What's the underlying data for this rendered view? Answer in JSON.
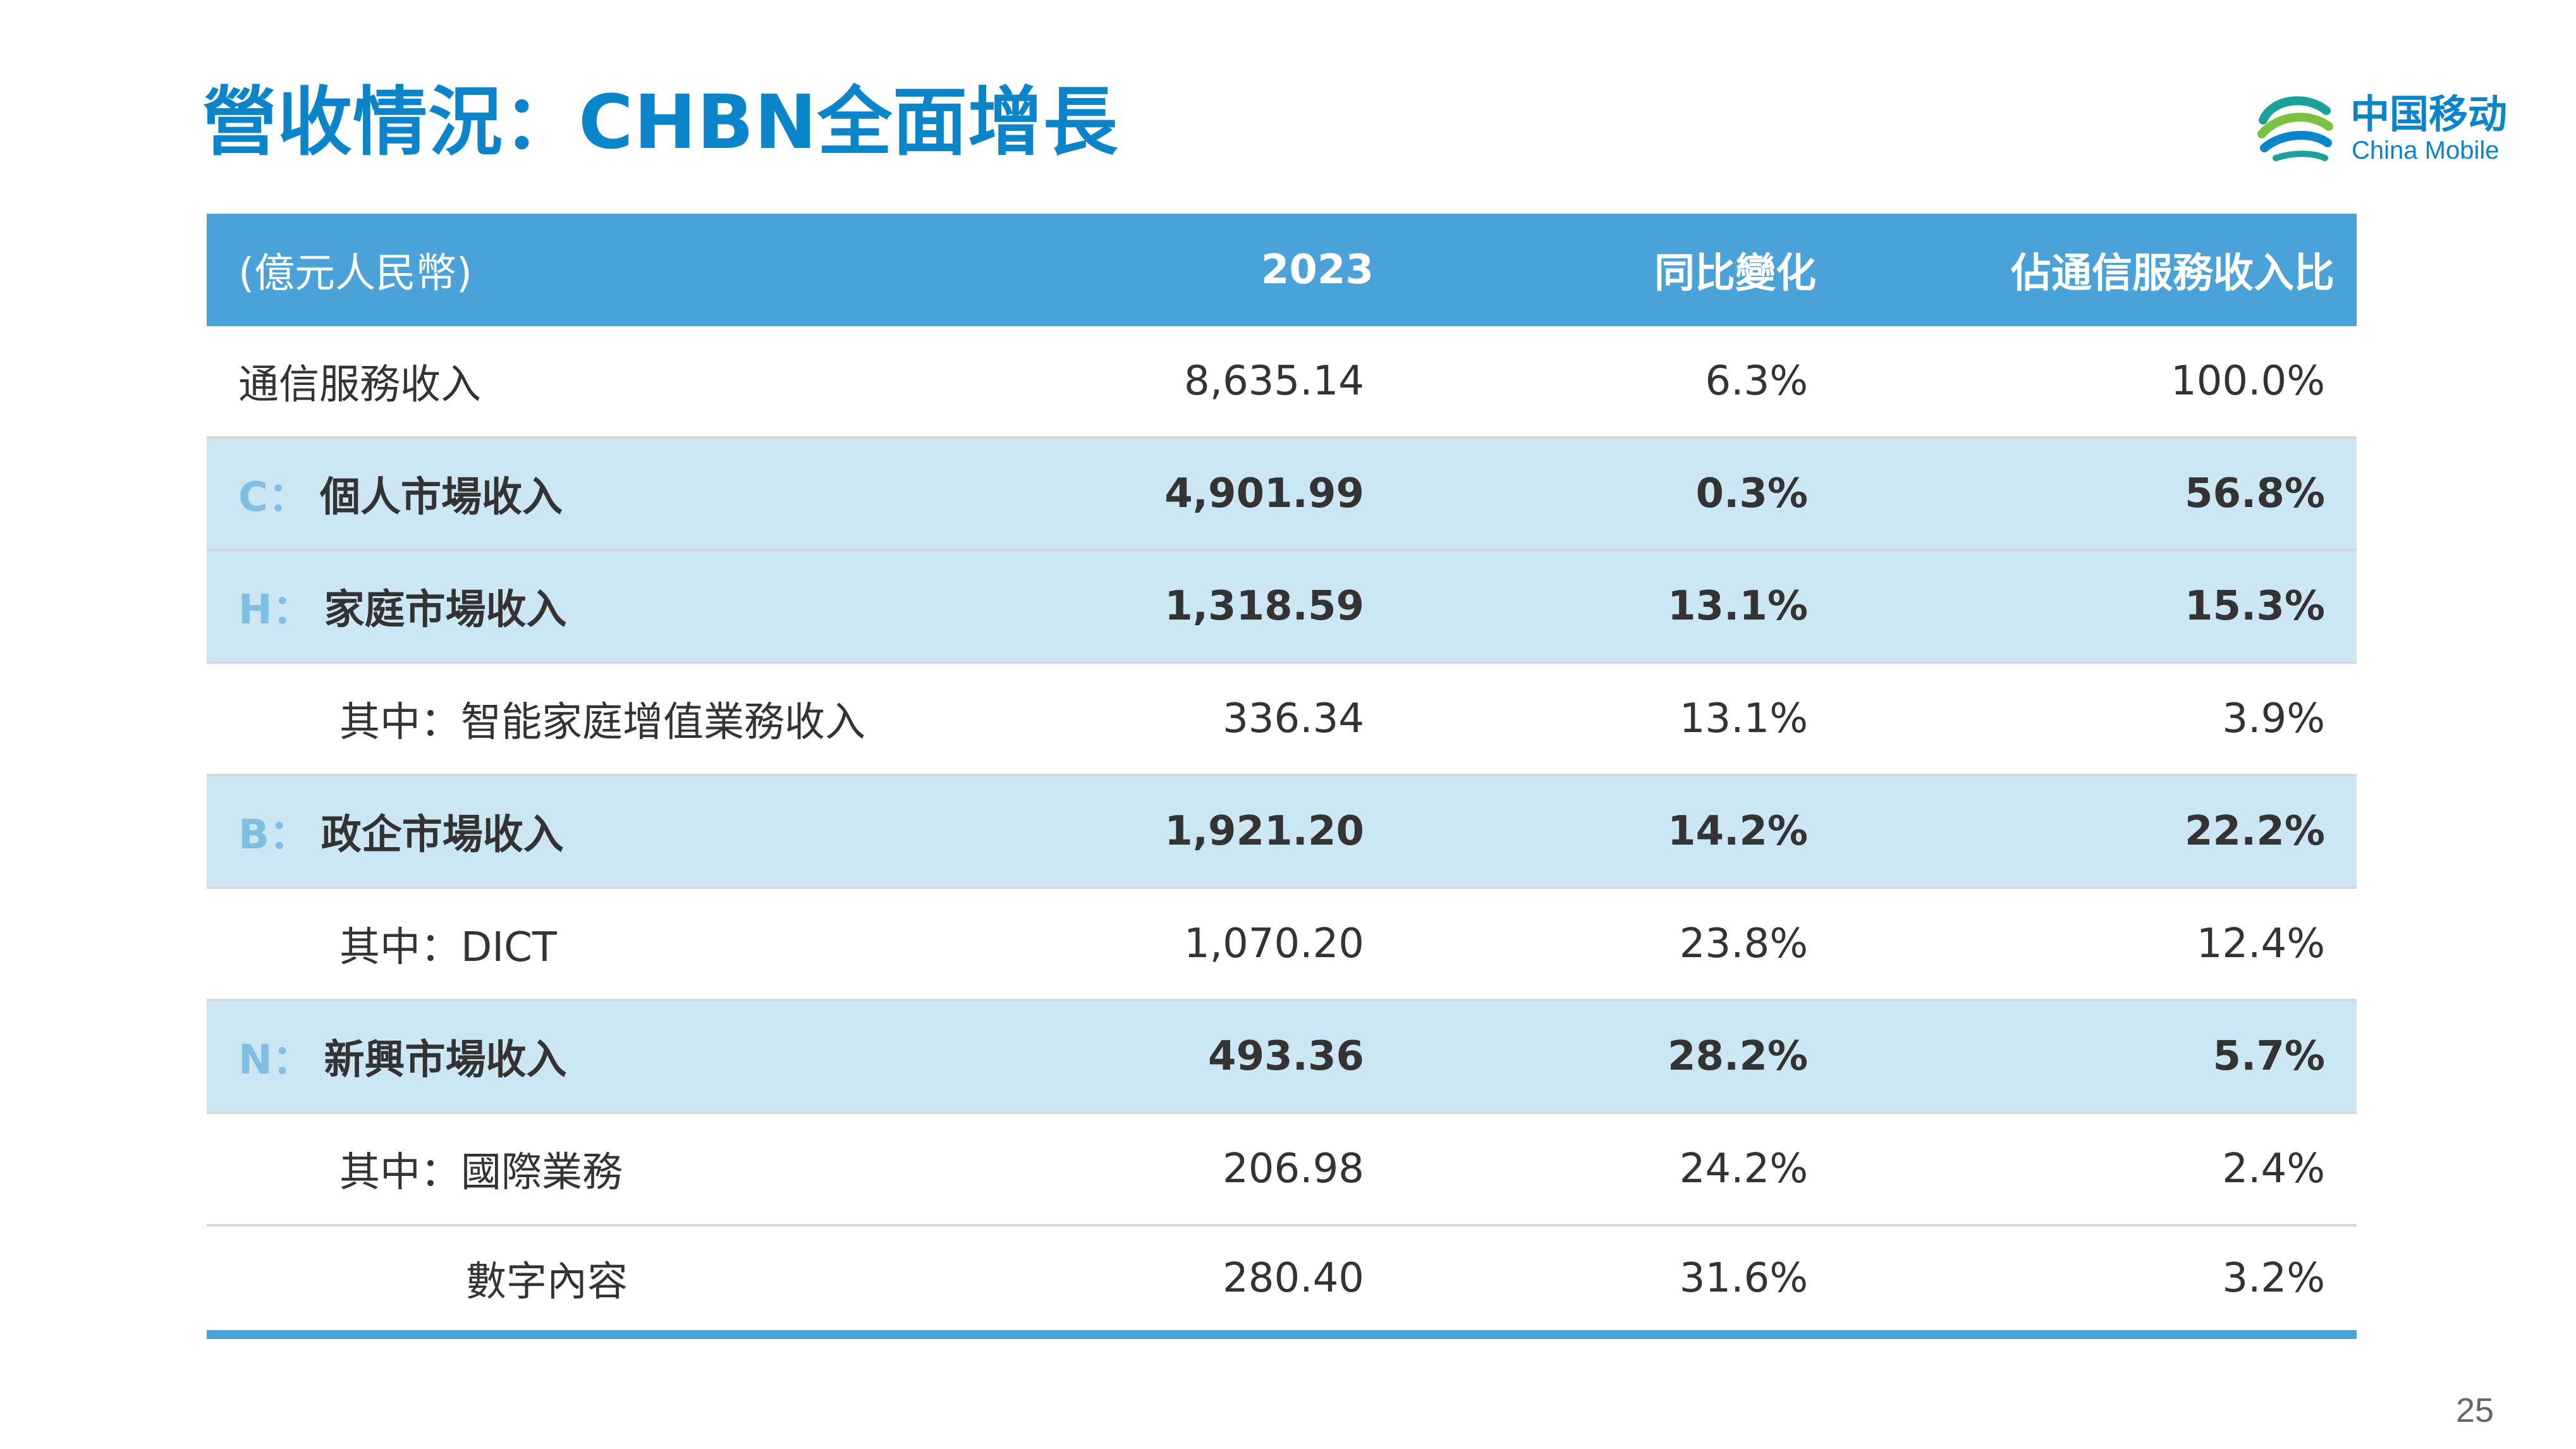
{
  "title": "營收情況：CHBN全面增長",
  "logo": {
    "cn": "中国移动",
    "en": "China Mobile",
    "icon": "china-mobile-logo-icon",
    "colors": [
      "#1aa19a",
      "#0b84c9",
      "#7cc242"
    ]
  },
  "colors": {
    "accent": "#0b84c9",
    "header_bg": "#4aa2d8",
    "alt_row_bg": "#cde6f4",
    "prefix": "#7fbfe5"
  },
  "table": {
    "headers": [
      "(億元人民幣)",
      "2023",
      "同比變化",
      "佔通信服務收入比"
    ],
    "rows": [
      {
        "prefix": "",
        "label": "通信服務收入",
        "value": "8,635.14",
        "yoy": "6.3%",
        "share": "100.0%"
      },
      {
        "prefix": "C：",
        "label": "個人市場收入",
        "value": "4,901.99",
        "yoy": "0.3%",
        "share": "56.8%"
      },
      {
        "prefix": "H：",
        "label": "家庭市場收入",
        "value": "1,318.59",
        "yoy": "13.1%",
        "share": "15.3%"
      },
      {
        "prefix": "",
        "label": "其中：智能家庭增值業務收入",
        "value": "336.34",
        "yoy": "13.1%",
        "share": "3.9%"
      },
      {
        "prefix": "B：",
        "label": "政企市場收入",
        "value": "1,921.20",
        "yoy": "14.2%",
        "share": "22.2%"
      },
      {
        "prefix": "",
        "label": "其中：DICT",
        "value": "1,070.20",
        "yoy": "23.8%",
        "share": "12.4%"
      },
      {
        "prefix": "N：",
        "label": "新興市場收入",
        "value": "493.36",
        "yoy": "28.2%",
        "share": "5.7%"
      },
      {
        "prefix": "",
        "label": "其中：國際業務",
        "value": "206.98",
        "yoy": "24.2%",
        "share": "2.4%"
      },
      {
        "prefix": "",
        "label": "數字內容",
        "value": "280.40",
        "yoy": "31.6%",
        "share": "3.2%"
      }
    ]
  },
  "page_number": "25"
}
